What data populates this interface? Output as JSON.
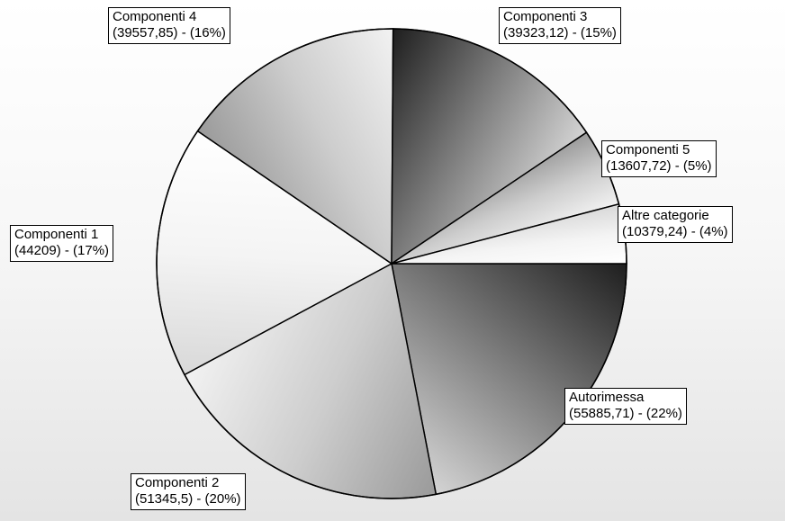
{
  "chart_data": {
    "type": "pie",
    "title": "",
    "slices": [
      {
        "name": "Autorimessa",
        "value": 55885.71,
        "percent": 22,
        "label_line1": "Autorimessa",
        "label_line2": "(55885,71) - (22%)",
        "shade": "dark"
      },
      {
        "name": "Componenti 2",
        "value": 51345.5,
        "percent": 20,
        "label_line1": "Componenti 2",
        "label_line2": "(51345,5) - (20%)",
        "shade": "mid"
      },
      {
        "name": "Componenti 1",
        "value": 44209,
        "percent": 17,
        "label_line1": "Componenti 1",
        "label_line2": "(44209) - (17%)",
        "shade": "light"
      },
      {
        "name": "Componenti 4",
        "value": 39557.85,
        "percent": 16,
        "label_line1": "Componenti 4",
        "label_line2": "(39557,85) - (16%)",
        "shade": "mid"
      },
      {
        "name": "Componenti 3",
        "value": 39323.12,
        "percent": 15,
        "label_line1": "Componenti 3",
        "label_line2": "(39323,12) - (15%)",
        "shade": "dark"
      },
      {
        "name": "Componenti 5",
        "value": 13607.72,
        "percent": 5,
        "label_line1": "Componenti 5",
        "label_line2": "(13607,72) - (5%)",
        "shade": "mid"
      },
      {
        "name": "Altre categorie",
        "value": 10379.24,
        "percent": 4,
        "label_line1": "Altre categorie",
        "label_line2": "(10379,24) - (4%)",
        "shade": "light"
      }
    ],
    "start_direction": "east",
    "rotation": "clockwise",
    "legend": "none",
    "colors": {
      "border": "#000000",
      "label_background": "#ffffff"
    }
  }
}
